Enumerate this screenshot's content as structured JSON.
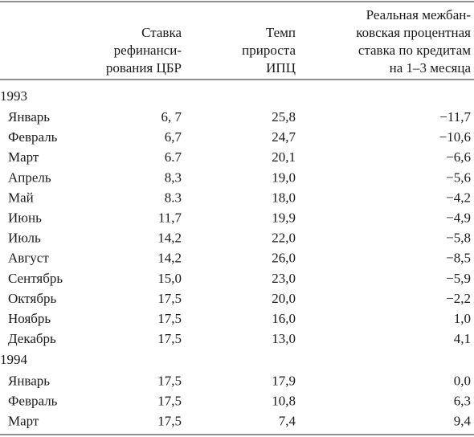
{
  "table": {
    "columns": [
      {
        "lines": [
          "Ставка",
          "рефинанси-",
          "рования ЦБР"
        ]
      },
      {
        "lines": [
          "Темп",
          "прироста",
          "ИПЦ"
        ]
      },
      {
        "lines": [
          "Реальная межбан-",
          "ковская процентная",
          "ставка по кредитам",
          "на 1–3 месяца"
        ]
      }
    ],
    "groups": [
      {
        "year": "1993",
        "rows": [
          [
            "Январь",
            "6, 7",
            "25,8",
            "−11,7"
          ],
          [
            "Февраль",
            "6,7",
            "24,7",
            "−10,6"
          ],
          [
            "Март",
            "6.7",
            "20,1",
            "−6,6"
          ],
          [
            "Апрель",
            "8,3",
            "19,0",
            "−5,6"
          ],
          [
            "Май",
            "8.3",
            "18,0",
            "−4,2"
          ],
          [
            "Июнь",
            "11,7",
            "19,9",
            "−4,9"
          ],
          [
            "Июль",
            "14,2",
            "22,0",
            "−5,8"
          ],
          [
            "Август",
            "14,2",
            "26,0",
            "−8,5"
          ],
          [
            "Сентябрь",
            "15,0",
            "23,0",
            "−5,9"
          ],
          [
            "Октябрь",
            "17,5",
            "20,0",
            "−2,2"
          ],
          [
            "Ноябрь",
            "17,5",
            "16,0",
            "1,0"
          ],
          [
            "Декабрь",
            "17,5",
            "13,0",
            "4,1"
          ]
        ]
      },
      {
        "year": "1994",
        "rows": [
          [
            "Январь",
            "17,5",
            "17,9",
            "0,0"
          ],
          [
            "Февраль",
            "17,5",
            "10,8",
            "6,3"
          ],
          [
            "Март",
            "17,5",
            "7,4",
            "9,4"
          ]
        ]
      }
    ]
  }
}
